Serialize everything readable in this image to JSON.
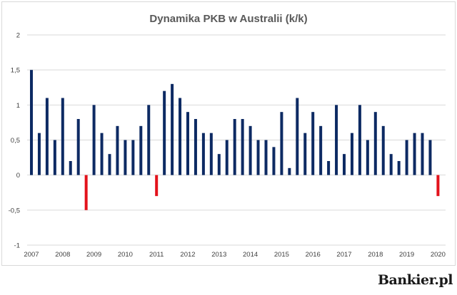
{
  "chart_data": {
    "type": "bar",
    "title": "Dynamika PKB w Australii (k/k)",
    "xlabel": "",
    "ylabel": "",
    "ylim": [
      -1,
      2
    ],
    "yticks": [
      2,
      1.5,
      1,
      0.5,
      0,
      -0.5,
      -1
    ],
    "ytick_labels": [
      "2",
      "1,5",
      "1",
      "0,5",
      "0",
      "-0,5",
      "-1"
    ],
    "xtick_labels": [
      "2007",
      "2008",
      "2009",
      "2010",
      "2011",
      "2012",
      "2013",
      "2014",
      "2015",
      "2016",
      "2017",
      "2018",
      "2019",
      "2020"
    ],
    "grid": true,
    "legend": "none",
    "colors": {
      "positive": "#0d2a63",
      "negative": "#e3121b",
      "grid": "#d9d9d9"
    },
    "categories": [
      "2007 Q1",
      "2007 Q2",
      "2007 Q3",
      "2007 Q4",
      "2008 Q1",
      "2008 Q2",
      "2008 Q3",
      "2008 Q4",
      "2009 Q1",
      "2009 Q2",
      "2009 Q3",
      "2009 Q4",
      "2010 Q1",
      "2010 Q2",
      "2010 Q3",
      "2010 Q4",
      "2011 Q1",
      "2011 Q2",
      "2011 Q3",
      "2011 Q4",
      "2012 Q1",
      "2012 Q2",
      "2012 Q3",
      "2012 Q4",
      "2013 Q1",
      "2013 Q2",
      "2013 Q3",
      "2013 Q4",
      "2014 Q1",
      "2014 Q2",
      "2014 Q3",
      "2014 Q4",
      "2015 Q1",
      "2015 Q2",
      "2015 Q3",
      "2015 Q4",
      "2016 Q1",
      "2016 Q2",
      "2016 Q3",
      "2016 Q4",
      "2017 Q1",
      "2017 Q2",
      "2017 Q3",
      "2017 Q4",
      "2018 Q1",
      "2018 Q2",
      "2018 Q3",
      "2018 Q4",
      "2019 Q1",
      "2019 Q2",
      "2019 Q3",
      "2019 Q4",
      "2020 Q1"
    ],
    "values": [
      1.5,
      0.6,
      1.1,
      0.5,
      1.1,
      0.2,
      0.8,
      -0.5,
      1.0,
      0.6,
      0.3,
      0.7,
      0.5,
      0.5,
      0.7,
      1.0,
      -0.3,
      1.2,
      1.3,
      1.1,
      0.9,
      0.8,
      0.6,
      0.6,
      0.3,
      0.5,
      0.8,
      0.8,
      0.7,
      0.5,
      0.5,
      0.4,
      0.9,
      0.1,
      1.1,
      0.6,
      0.9,
      0.7,
      0.2,
      1.0,
      0.3,
      0.6,
      1.0,
      0.5,
      0.9,
      0.7,
      0.3,
      0.2,
      0.5,
      0.6,
      0.6,
      0.5,
      -0.3
    ]
  },
  "branding": {
    "logo_text": "Bankier.pl"
  }
}
